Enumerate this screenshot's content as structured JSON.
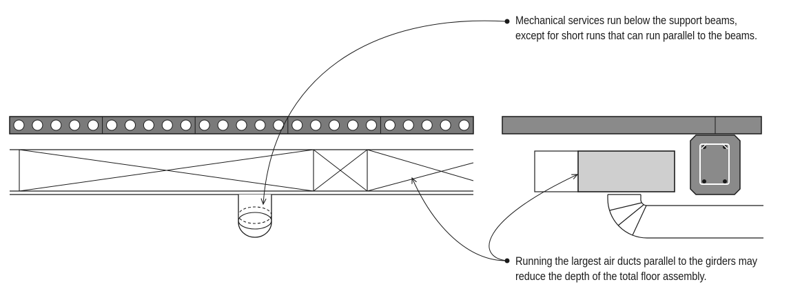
{
  "annotations": {
    "top": {
      "line1": "Mechanical services run below the support beams,",
      "line2": "except for short runs that can run parallel to the beams."
    },
    "bottom": {
      "line1": "Running the largest air ducts parallel to the girders may",
      "line2": "reduce the depth of the total floor assembly."
    }
  },
  "diagram": {
    "hollow_core_plank": {
      "segments": 5,
      "cores_per_segment": 5
    },
    "colors": {
      "stroke": "#1a1a1a",
      "plank_fill": "#7a7a7a",
      "slab_fill": "#8a8a8a",
      "duct_fill": "#cfcfcf",
      "girder_fill": "#8a8a8a"
    }
  }
}
